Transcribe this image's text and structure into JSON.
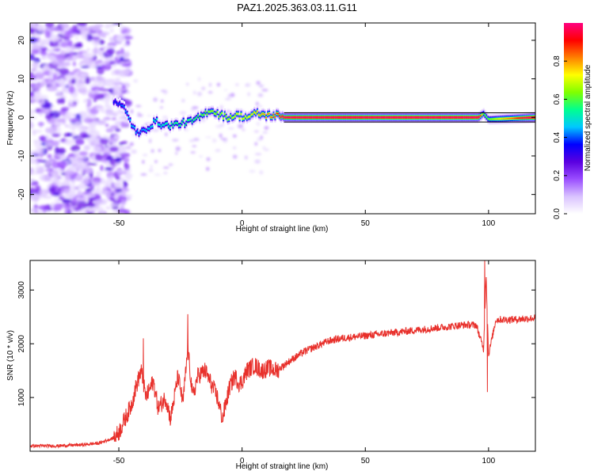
{
  "title": "PAZ1.2025.363.03.11.G11",
  "chart_data": [
    {
      "type": "heatmap",
      "xlabel": "Height of straight line (km)",
      "ylabel": "Frequency (Hz)",
      "xlim": [
        -86,
        119
      ],
      "ylim": [
        -25,
        24.5
      ],
      "xticks": [
        -50,
        0,
        50,
        100
      ],
      "yticks": [
        -20,
        -10,
        0,
        10,
        20
      ],
      "xtick_labels": [
        "-50",
        "0",
        "50",
        "100"
      ],
      "ytick_labels": [
        "-20",
        "-10",
        "0",
        "10",
        "20"
      ],
      "colorbar": {
        "label": "Normalized spectral amplitude",
        "range": [
          0,
          1
        ],
        "ticks": [
          0.0,
          0.2,
          0.4,
          0.6,
          0.8
        ],
        "tick_labels": [
          "0.0",
          "0.2",
          "0.4",
          "0.6",
          "0.8"
        ],
        "colormap": [
          "#ffffff",
          "#d9c2ff",
          "#9a4dff",
          "#5a00e0",
          "#0000ff",
          "#00c8ff",
          "#00ff90",
          "#80ff00",
          "#ffff00",
          "#ff8000",
          "#ff0000",
          "#ff0080"
        ]
      },
      "ridge": [
        {
          "x": -52,
          "f": 4.5,
          "a": 0.25
        },
        {
          "x": -48,
          "f": 2.5,
          "a": 0.3
        },
        {
          "x": -45,
          "f": -1.5,
          "a": 0.35
        },
        {
          "x": -42,
          "f": -4.5,
          "a": 0.3
        },
        {
          "x": -38,
          "f": -2.5,
          "a": 0.35
        },
        {
          "x": -35,
          "f": -1.0,
          "a": 0.4
        },
        {
          "x": -32,
          "f": -2.0,
          "a": 0.4
        },
        {
          "x": -28,
          "f": -2.0,
          "a": 0.45
        },
        {
          "x": -24,
          "f": -1.5,
          "a": 0.45
        },
        {
          "x": -20,
          "f": -1.0,
          "a": 0.45
        },
        {
          "x": -16,
          "f": 0.5,
          "a": 0.5
        },
        {
          "x": -13,
          "f": 2.0,
          "a": 0.55
        },
        {
          "x": -10,
          "f": 1.0,
          "a": 0.55
        },
        {
          "x": -6,
          "f": 0.0,
          "a": 0.55
        },
        {
          "x": -2,
          "f": 0.5,
          "a": 0.6
        },
        {
          "x": 2,
          "f": 0.0,
          "a": 0.6
        },
        {
          "x": 6,
          "f": 1.0,
          "a": 0.65
        },
        {
          "x": 10,
          "f": 0.5,
          "a": 0.7
        },
        {
          "x": 14,
          "f": 0.5,
          "a": 0.75
        },
        {
          "x": 17,
          "f": 0.0,
          "a": 0.9
        },
        {
          "x": 60,
          "f": 0.0,
          "a": 0.95
        },
        {
          "x": 96,
          "f": 0.0,
          "a": 0.95
        },
        {
          "x": 98,
          "f": 1.0,
          "a": 0.5
        },
        {
          "x": 100,
          "f": -0.5,
          "a": 0.5
        },
        {
          "x": 119,
          "f": 0.0,
          "a": 0.95
        }
      ]
    },
    {
      "type": "line",
      "xlabel": "Height of straight line (km)",
      "ylabel": "SNR (10 * v/v)",
      "xlim": [
        -86,
        119
      ],
      "ylim": [
        0,
        3550
      ],
      "xticks": [
        -50,
        0,
        50,
        100
      ],
      "yticks": [
        1000,
        2000,
        3000
      ],
      "xtick_labels": [
        "-50",
        "0",
        "50",
        "100"
      ],
      "ytick_labels": [
        "1000",
        "2000",
        "3000"
      ],
      "color": "#e8302b",
      "series": [
        {
          "name": "SNR",
          "x": [
            -86,
            -75,
            -65,
            -58,
            -52,
            -50,
            -47,
            -45,
            -43,
            -41,
            -39,
            -36,
            -34,
            -31,
            -29,
            -26,
            -24,
            -22,
            -20,
            -18,
            -15,
            -12,
            -10,
            -8,
            -5,
            -3,
            -1,
            0,
            2,
            5,
            8,
            11,
            14,
            17,
            20,
            25,
            30,
            35,
            40,
            50,
            60,
            70,
            80,
            90,
            95,
            98,
            99,
            100,
            103,
            110,
            119
          ],
          "y": [
            100,
            100,
            120,
            150,
            250,
            350,
            650,
            850,
            1200,
            1500,
            1000,
            1300,
            800,
            1000,
            600,
            1400,
            900,
            1900,
            1000,
            1400,
            1500,
            1200,
            1000,
            600,
            1200,
            1400,
            1250,
            1300,
            1500,
            1600,
            1500,
            1550,
            1500,
            1600,
            1700,
            1850,
            1950,
            2050,
            2100,
            2150,
            2200,
            2250,
            2300,
            2350,
            2350,
            1900,
            3300,
            1800,
            2450,
            2450,
            2480
          ],
          "noise": 140
        }
      ],
      "annotations": [
        {
          "x": -22,
          "y": 2550
        },
        {
          "x": 98.5,
          "y": 3550
        },
        {
          "x": 99.5,
          "y": 1100
        },
        {
          "x": -40,
          "y": 2100
        }
      ]
    }
  ]
}
